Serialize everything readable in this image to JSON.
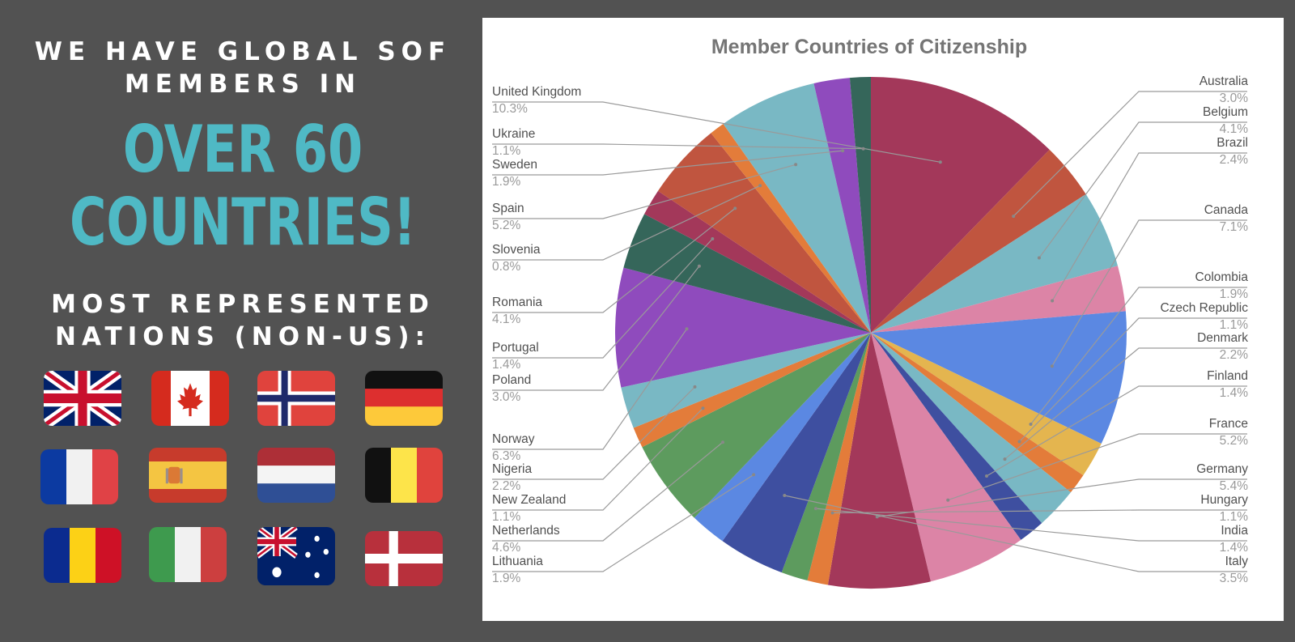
{
  "promo": {
    "headline_top": "WE HAVE GLOBAL SOF MEMBERS IN",
    "headline_big": "OVER 60 COUNTRIES!",
    "headline_sub": "MOST REPRESENTED NATIONS (NON-US):",
    "text_color": "#ffffff",
    "accent_color": "#4fb9c5",
    "flags": [
      "united-kingdom-flag",
      "canada-flag",
      "norway-flag",
      "germany-flag",
      "france-flag",
      "spain-flag",
      "netherlands-flag",
      "belgium-flag",
      "romania-flag",
      "italy-flag",
      "australia-flag",
      "denmark-flag"
    ]
  },
  "chart_data": {
    "type": "pie",
    "title": "Member Countries of Citizenship",
    "slices": [
      {
        "label": "United Kingdom",
        "value": 10.3,
        "display": "10.3%",
        "color": "#a3385a"
      },
      {
        "label": "Australia",
        "value": 3.0,
        "display": "3.0%",
        "color": "#c0553f"
      },
      {
        "label": "Belgium",
        "value": 4.1,
        "display": "4.1%",
        "color": "#79b8c4"
      },
      {
        "label": "Brazil",
        "value": 2.4,
        "display": "2.4%",
        "color": "#dc84a6"
      },
      {
        "label": "Canada",
        "value": 7.1,
        "display": "7.1%",
        "color": "#5b88e2"
      },
      {
        "label": "Colombia",
        "value": 1.9,
        "display": "1.9%",
        "color": "#e4b54f"
      },
      {
        "label": "Czech Republic",
        "value": 1.1,
        "display": "1.1%",
        "color": "#e37c3a"
      },
      {
        "label": "Denmark",
        "value": 2.2,
        "display": "2.2%",
        "color": "#79b8c4"
      },
      {
        "label": "Finland",
        "value": 1.4,
        "display": "1.4%",
        "color": "#3e4fa0"
      },
      {
        "label": "France",
        "value": 5.2,
        "display": "5.2%",
        "color": "#dc84a6"
      },
      {
        "label": "Germany",
        "value": 5.4,
        "display": "5.4%",
        "color": "#a3385a"
      },
      {
        "label": "Hungary",
        "value": 1.1,
        "display": "1.1%",
        "color": "#e37c3a"
      },
      {
        "label": "India",
        "value": 1.4,
        "display": "1.4%",
        "color": "#5d9b5e"
      },
      {
        "label": "Italy",
        "value": 3.5,
        "display": "3.5%",
        "color": "#3e4fa0"
      },
      {
        "label": "Lithuania",
        "value": 1.9,
        "display": "1.9%",
        "color": "#5b88e2"
      },
      {
        "label": "Netherlands",
        "value": 4.6,
        "display": "4.6%",
        "color": "#5d9b5e"
      },
      {
        "label": "New Zealand",
        "value": 1.1,
        "display": "1.1%",
        "color": "#e37c3a"
      },
      {
        "label": "Nigeria",
        "value": 2.2,
        "display": "2.2%",
        "color": "#79b8c4"
      },
      {
        "label": "Norway",
        "value": 6.3,
        "display": "6.3%",
        "color": "#8f4bbd"
      },
      {
        "label": "Poland",
        "value": 3.0,
        "display": "3.0%",
        "color": "#35665a"
      },
      {
        "label": "Portugal",
        "value": 1.4,
        "display": "1.4%",
        "color": "#a3385a"
      },
      {
        "label": "Romania",
        "value": 4.1,
        "display": "4.1%",
        "color": "#c0553f"
      },
      {
        "label": "Slovenia",
        "value": 0.8,
        "display": "0.8%",
        "color": "#e37c3a"
      },
      {
        "label": "Spain",
        "value": 5.2,
        "display": "5.2%",
        "color": "#79b8c4"
      },
      {
        "label": "Sweden",
        "value": 1.9,
        "display": "1.9%",
        "color": "#8f4bbd"
      },
      {
        "label": "Ukraine",
        "value": 1.1,
        "display": "1.1%",
        "color": "#35665a"
      }
    ],
    "legend": "none",
    "labels_position": "outside-with-leader-lines"
  }
}
